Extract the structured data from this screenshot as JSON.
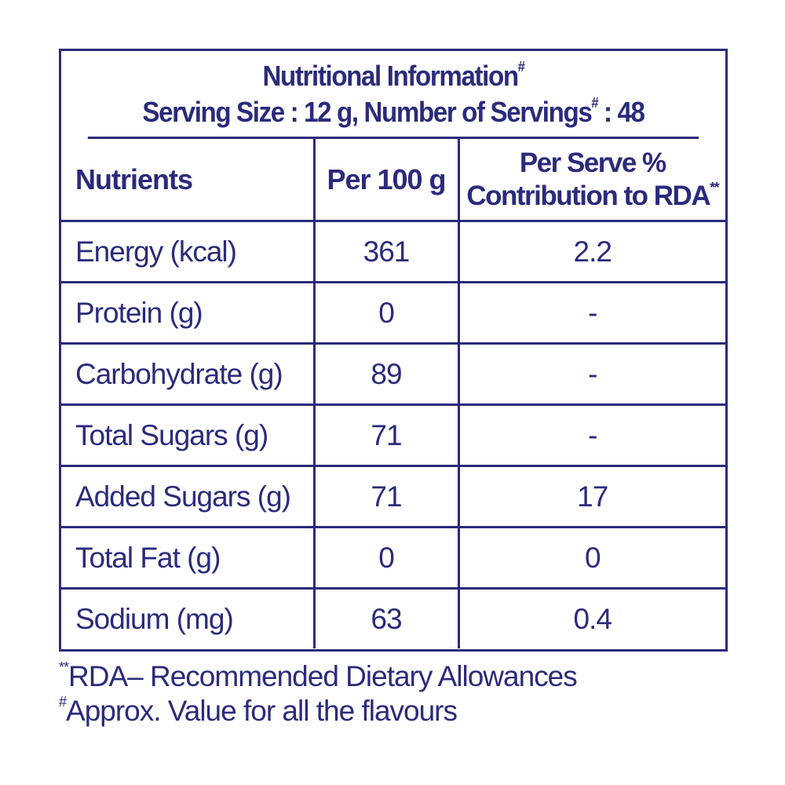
{
  "header": {
    "title": "Nutritional Information",
    "title_mark": "#",
    "serving_prefix": "Serving Size : 12 g, Number of Servings",
    "serving_mark": "#",
    "serving_suffix": " : 48"
  },
  "columns": {
    "nutrients": "Nutrients",
    "per100": "Per 100 g",
    "rda_line1": "Per Serve %",
    "rda_line2": "Contribution to RDA",
    "rda_mark": "**"
  },
  "rows": [
    {
      "name": "Energy (kcal)",
      "per100": "361",
      "rda": "2.2"
    },
    {
      "name": "Protein (g)",
      "per100": "0",
      "rda": "-"
    },
    {
      "name": "Carbohydrate (g)",
      "per100": "89",
      "rda": "-"
    },
    {
      "name": "Total Sugars (g)",
      "per100": "71",
      "rda": "-"
    },
    {
      "name": "Added Sugars (g)",
      "per100": "71",
      "rda": "17"
    },
    {
      "name": "Total Fat (g)",
      "per100": "0",
      "rda": "0"
    },
    {
      "name": "Sodium (mg)",
      "per100": "63",
      "rda": "0.4"
    }
  ],
  "footnotes": {
    "rda_mark": "**",
    "rda_text": "RDA– Recommended Dietary Allowances",
    "approx_mark": "#",
    "approx_text": "Approx. Value for all the flavours"
  },
  "colors": {
    "ink": "#2b2a7c",
    "background": "#ffffff"
  }
}
